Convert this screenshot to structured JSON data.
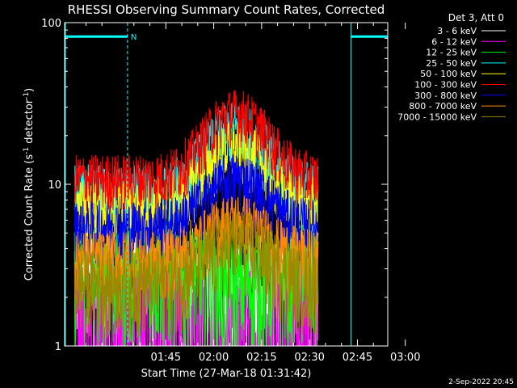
{
  "chart_data": {
    "type": "line",
    "title": "RHESSI Observing Summary Count Rates, Corrected",
    "xlabel": "Start Time (27-Mar-18 01:31:42)",
    "ylabel_main": "Corrected Count Rate (s",
    "ylabel_sup1": "-1",
    "ylabel_mid": " detector",
    "ylabel_sup2": "-1",
    "ylabel_end": ")",
    "y_scale": "log",
    "ylim": [
      1,
      100
    ],
    "y_ticks": [
      {
        "value": 1,
        "label": "1"
      },
      {
        "value": 10,
        "label": "10"
      },
      {
        "value": 100,
        "label": "100"
      }
    ],
    "xlim_minutes": [
      -31.7,
      69.5
    ],
    "x_ticks": [
      {
        "minutes": 0,
        "label": "01:45"
      },
      {
        "minutes": 15,
        "label": "02:00"
      },
      {
        "minutes": 30,
        "label": "02:15"
      },
      {
        "minutes": 45,
        "label": "02:30"
      },
      {
        "minutes": 60,
        "label": "02:45"
      },
      {
        "minutes": 75,
        "label": "03:00"
      }
    ],
    "data_start_minutes": -28.6,
    "data_end_minutes": 47.7,
    "legend_title": "Det 3, Att 0",
    "legend_placement": "right",
    "series": [
      {
        "name": "3 - 6 keV",
        "color": "#ffffff",
        "base": 3.0,
        "peak": 2.5,
        "noise": 0.55
      },
      {
        "name": "6 - 12 keV",
        "color": "#ff00ff",
        "base": 2.0,
        "peak": 1.6,
        "noise": 0.6
      },
      {
        "name": "12 - 25 keV",
        "color": "#00ff00",
        "base": 3.2,
        "peak": 2.5,
        "noise": 0.5
      },
      {
        "name": "25 - 50 keV",
        "color": "#00ffff",
        "base": 9.0,
        "peak": 22.0,
        "noise": 0.3
      },
      {
        "name": "50 - 100 keV",
        "color": "#ffff00",
        "base": 7.5,
        "peak": 17.0,
        "noise": 0.28
      },
      {
        "name": "100 - 300 keV",
        "color": "#ff0000",
        "base": 11.0,
        "peak": 28.0,
        "noise": 0.25
      },
      {
        "name": "300 - 800 keV",
        "color": "#0000ff",
        "base": 5.5,
        "peak": 11.0,
        "noise": 0.28
      },
      {
        "name": "800 - 7000 keV",
        "color": "#ff8800",
        "base": 3.5,
        "peak": 6.0,
        "noise": 0.3
      },
      {
        "name": "7000 - 15000 keV",
        "color": "#998800",
        "base": 2.5,
        "peak": 4.5,
        "noise": 0.35
      }
    ],
    "peak_minutes": 22.0,
    "peak_width_minutes": 12.0,
    "attenuator_bars": [
      {
        "start_minutes": -31.7,
        "end_minutes": -12.0,
        "value": 82
      },
      {
        "start_minutes": 58.0,
        "end_minutes": 69.5,
        "value": 82
      }
    ],
    "night_lines_minutes": [
      -12.0,
      58.0,
      69.5
    ],
    "night_marker": "N",
    "colors": {
      "background": "#000000",
      "axes": "#ffffff",
      "attenuator": "#00ffff"
    }
  },
  "footer_date": "2-Sep-2022 20:45"
}
